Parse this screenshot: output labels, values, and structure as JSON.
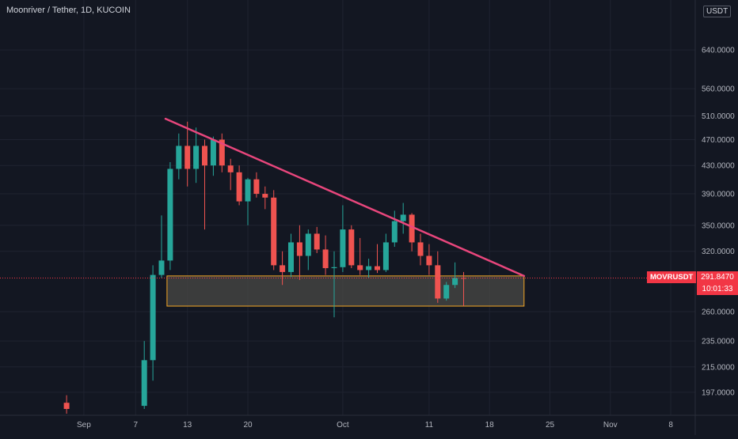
{
  "header": {
    "symbol_title": "Moonriver / Tether, 1D, KUCOIN",
    "currency_badge": "USDT",
    "axis_cut_label": "7"
  },
  "price_axis": {
    "labels": [
      "640.0000",
      "560.0000",
      "510.0000",
      "470.0000",
      "430.0000",
      "390.0000",
      "350.0000",
      "320.0000",
      "260.0000",
      "235.0000",
      "215.0000",
      "197.0000"
    ],
    "values": [
      640,
      560,
      510,
      470,
      430,
      390,
      350,
      320,
      260,
      235,
      215,
      197
    ]
  },
  "time_axis": {
    "labels": [
      "Sep",
      "7",
      "13",
      "20",
      "Oct",
      "11",
      "18",
      "25",
      "Nov",
      "8"
    ],
    "dates": [
      "2021-09-01",
      "2021-09-07",
      "2021-09-13",
      "2021-09-20",
      "2021-10-01",
      "2021-10-11",
      "2021-10-18",
      "2021-10-25",
      "2021-11-01",
      "2021-11-08"
    ]
  },
  "current_price": {
    "symbol": "MOVRUSDT",
    "price": "291.8470",
    "countdown": "10:01:33",
    "value": 291.847
  },
  "colors": {
    "up": "#26a69a",
    "down": "#ef5350",
    "trendline": "#e8467c",
    "zone_border": "#f5a623",
    "zone_fill": "#4a4a45",
    "price_tag": "#f23645",
    "grid": "#1f2330",
    "background": "#131722"
  },
  "chart_data": {
    "type": "candlestick",
    "scale": "log",
    "grid": true,
    "y_range": [
      182,
      760
    ],
    "candles": [
      {
        "date": "2021-08-30",
        "open": 190,
        "high": 195,
        "low": 183,
        "close": 186
      },
      {
        "date": "2021-09-08",
        "open": 188,
        "high": 235,
        "low": 186,
        "close": 220
      },
      {
        "date": "2021-09-09",
        "open": 220,
        "high": 305,
        "low": 205,
        "close": 295
      },
      {
        "date": "2021-09-10",
        "open": 295,
        "high": 362,
        "low": 292,
        "close": 310
      },
      {
        "date": "2021-09-11",
        "open": 310,
        "high": 435,
        "low": 300,
        "close": 425
      },
      {
        "date": "2021-09-12",
        "open": 425,
        "high": 480,
        "low": 410,
        "close": 460
      },
      {
        "date": "2021-09-13",
        "open": 460,
        "high": 500,
        "low": 400,
        "close": 425
      },
      {
        "date": "2021-09-14",
        "open": 425,
        "high": 490,
        "low": 405,
        "close": 460
      },
      {
        "date": "2021-09-15",
        "open": 460,
        "high": 470,
        "low": 345,
        "close": 430
      },
      {
        "date": "2021-09-16",
        "open": 430,
        "high": 475,
        "low": 415,
        "close": 470
      },
      {
        "date": "2021-09-17",
        "open": 470,
        "high": 480,
        "low": 420,
        "close": 430
      },
      {
        "date": "2021-09-18",
        "open": 430,
        "high": 440,
        "low": 395,
        "close": 420
      },
      {
        "date": "2021-09-19",
        "open": 420,
        "high": 430,
        "low": 375,
        "close": 380
      },
      {
        "date": "2021-09-20",
        "open": 380,
        "high": 412,
        "low": 350,
        "close": 410
      },
      {
        "date": "2021-09-21",
        "open": 410,
        "high": 420,
        "low": 385,
        "close": 390
      },
      {
        "date": "2021-09-22",
        "open": 390,
        "high": 400,
        "low": 370,
        "close": 385
      },
      {
        "date": "2021-09-23",
        "open": 385,
        "high": 395,
        "low": 300,
        "close": 305
      },
      {
        "date": "2021-09-24",
        "open": 305,
        "high": 320,
        "low": 285,
        "close": 298
      },
      {
        "date": "2021-09-25",
        "open": 298,
        "high": 340,
        "low": 293,
        "close": 330
      },
      {
        "date": "2021-09-26",
        "open": 330,
        "high": 350,
        "low": 290,
        "close": 315
      },
      {
        "date": "2021-09-27",
        "open": 315,
        "high": 345,
        "low": 300,
        "close": 340
      },
      {
        "date": "2021-09-28",
        "open": 340,
        "high": 348,
        "low": 318,
        "close": 322
      },
      {
        "date": "2021-09-29",
        "open": 322,
        "high": 338,
        "low": 295,
        "close": 302
      },
      {
        "date": "2021-09-30",
        "open": 302,
        "high": 320,
        "low": 255,
        "close": 303
      },
      {
        "date": "2021-10-01",
        "open": 303,
        "high": 375,
        "low": 298,
        "close": 345
      },
      {
        "date": "2021-10-02",
        "open": 345,
        "high": 350,
        "low": 302,
        "close": 305
      },
      {
        "date": "2021-10-03",
        "open": 305,
        "high": 335,
        "low": 295,
        "close": 300
      },
      {
        "date": "2021-10-04",
        "open": 300,
        "high": 312,
        "low": 292,
        "close": 304
      },
      {
        "date": "2021-10-05",
        "open": 304,
        "high": 328,
        "low": 297,
        "close": 300
      },
      {
        "date": "2021-10-06",
        "open": 300,
        "high": 340,
        "low": 298,
        "close": 330
      },
      {
        "date": "2021-10-07",
        "open": 330,
        "high": 368,
        "low": 325,
        "close": 355
      },
      {
        "date": "2021-10-08",
        "open": 355,
        "high": 378,
        "low": 340,
        "close": 363
      },
      {
        "date": "2021-10-09",
        "open": 363,
        "high": 365,
        "low": 320,
        "close": 330
      },
      {
        "date": "2021-10-10",
        "open": 330,
        "high": 340,
        "low": 305,
        "close": 315
      },
      {
        "date": "2021-10-11",
        "open": 315,
        "high": 328,
        "low": 295,
        "close": 305
      },
      {
        "date": "2021-10-12",
        "open": 305,
        "high": 320,
        "low": 268,
        "close": 272
      },
      {
        "date": "2021-10-13",
        "open": 272,
        "high": 288,
        "low": 270,
        "close": 285
      },
      {
        "date": "2021-10-14",
        "open": 285,
        "high": 308,
        "low": 282,
        "close": 292
      },
      {
        "date": "2021-10-15",
        "open": 292,
        "high": 298,
        "low": 265,
        "close": 291.847
      }
    ],
    "annotations": {
      "trendline": {
        "start": {
          "date": "2021-09-10",
          "price": 505
        },
        "end": {
          "date": "2021-10-22",
          "price": 294
        }
      },
      "support_zone": {
        "start_date": "2021-09-11",
        "end_date": "2021-10-22",
        "top": 294,
        "bottom": 265
      }
    }
  }
}
